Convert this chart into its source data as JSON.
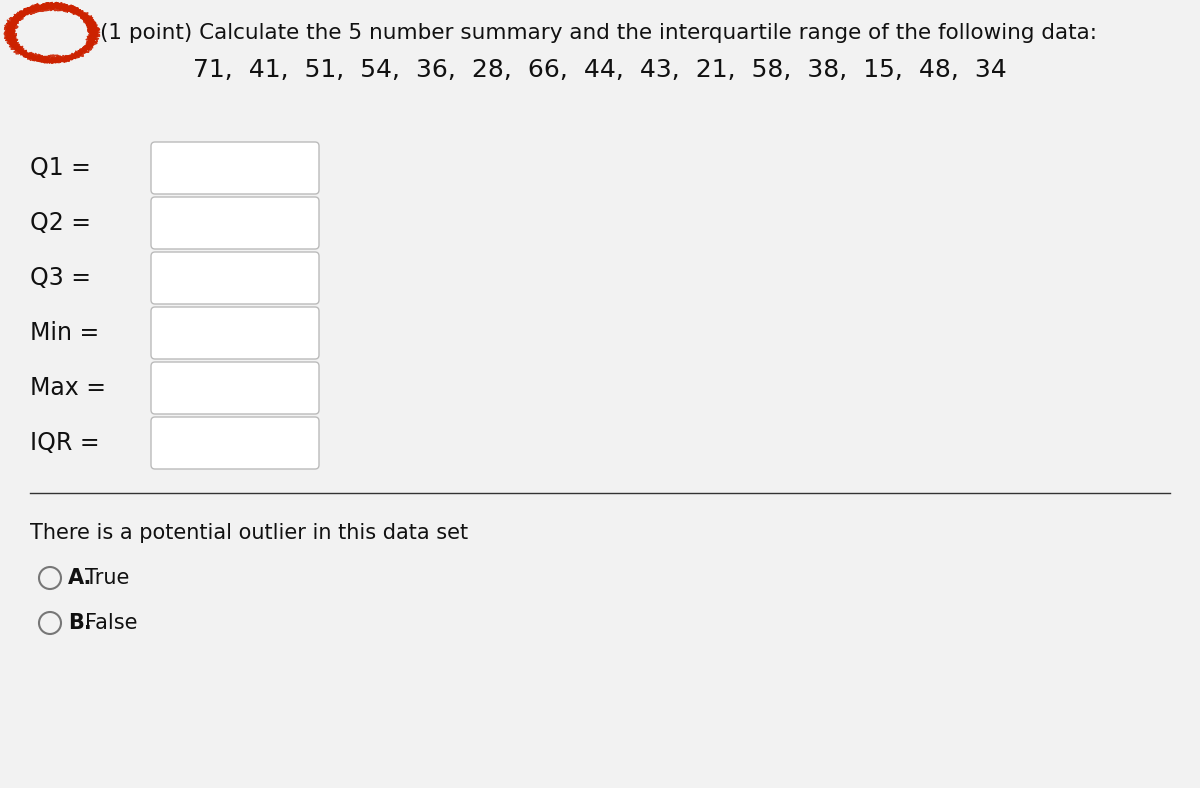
{
  "title_text": "(1 point) Calculate the 5 number summary and the interquartile range of the following data:",
  "data_line": "71,  41,  51,  54,  36,  28,  66,  44,  43,  21,  58,  38,  15,  48,  34",
  "labels": [
    "Q1 =",
    "Q2 =",
    "Q3 =",
    "Min =",
    "Max =",
    "IQR ="
  ],
  "background_color": "#f2f2f2",
  "box_color": "#ffffff",
  "box_border_color": "#bbbbbb",
  "text_color": "#111111",
  "title_fontsize": 15.5,
  "data_fontsize": 18,
  "label_fontsize": 17,
  "answer_section_text": "There is a potential outlier in this data set",
  "answer_A_bold": "A.",
  "answer_A_normal": " True",
  "answer_B_bold": "B.",
  "answer_B_normal": " False",
  "circle_color": "#777777",
  "red_color": "#cc2200",
  "sep_line_color": "#333333"
}
